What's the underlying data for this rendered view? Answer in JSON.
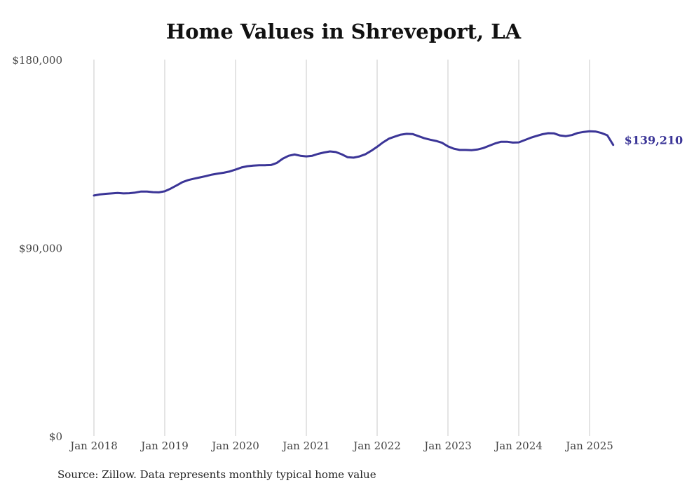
{
  "chart_data": {
    "type": "line",
    "title": "Home Values in Shreveport, LA",
    "xlabel": "",
    "ylabel": "",
    "ylim": [
      0,
      180000
    ],
    "yticks": [
      0,
      90000,
      180000
    ],
    "ytick_labels": [
      "$0",
      "$90,000",
      "$180,000"
    ],
    "xticks": [
      "2018-01",
      "2019-01",
      "2020-01",
      "2021-01",
      "2022-01",
      "2023-01",
      "2024-01",
      "2025-01"
    ],
    "xtick_labels": [
      "Jan 2018",
      "Jan 2019",
      "Jan 2020",
      "Jan 2021",
      "Jan 2022",
      "Jan 2023",
      "Jan 2024",
      "Jan 2025"
    ],
    "x_range": [
      "2018-01",
      "2025-05"
    ],
    "grid": "vertical",
    "legend": "none",
    "series_color": "#3b3597",
    "end_label": "$139,210",
    "series": [
      {
        "x": [
          "2018-01",
          "2018-02",
          "2018-03",
          "2018-04",
          "2018-05",
          "2018-06",
          "2018-07",
          "2018-08",
          "2018-09",
          "2018-10",
          "2018-11",
          "2018-12",
          "2019-01",
          "2019-02",
          "2019-03",
          "2019-04",
          "2019-05",
          "2019-06",
          "2019-07",
          "2019-08",
          "2019-09",
          "2019-10",
          "2019-11",
          "2019-12",
          "2020-01",
          "2020-02",
          "2020-03",
          "2020-04",
          "2020-05",
          "2020-06",
          "2020-07",
          "2020-08",
          "2020-09",
          "2020-10",
          "2020-11",
          "2020-12",
          "2021-01",
          "2021-02",
          "2021-03",
          "2021-04",
          "2021-05",
          "2021-06",
          "2021-07",
          "2021-08",
          "2021-09",
          "2021-10",
          "2021-11",
          "2021-12",
          "2022-01",
          "2022-02",
          "2022-03",
          "2022-04",
          "2022-05",
          "2022-06",
          "2022-07",
          "2022-08",
          "2022-09",
          "2022-10",
          "2022-11",
          "2022-12",
          "2023-01",
          "2023-02",
          "2023-03",
          "2023-04",
          "2023-05",
          "2023-06",
          "2023-07",
          "2023-08",
          "2023-09",
          "2023-10",
          "2023-11",
          "2023-12",
          "2024-01",
          "2024-02",
          "2024-03",
          "2024-04",
          "2024-05",
          "2024-06",
          "2024-07",
          "2024-08",
          "2024-09",
          "2024-10",
          "2024-11",
          "2024-12",
          "2025-01",
          "2025-02",
          "2025-03",
          "2025-04",
          "2025-05"
        ],
        "values": [
          115000,
          115500,
          115800,
          116000,
          116200,
          116000,
          116100,
          116400,
          116900,
          116900,
          116600,
          116500,
          117000,
          118300,
          119800,
          121400,
          122400,
          123100,
          123700,
          124300,
          125000,
          125500,
          125900,
          126500,
          127400,
          128400,
          129000,
          129300,
          129500,
          129500,
          129600,
          130600,
          132600,
          134000,
          134600,
          134000,
          133700,
          134000,
          134900,
          135600,
          136100,
          135800,
          134700,
          133300,
          133100,
          133700,
          134700,
          136400,
          138300,
          140400,
          142200,
          143200,
          144100,
          144500,
          144400,
          143400,
          142400,
          141700,
          141100,
          140200,
          138500,
          137400,
          136800,
          136800,
          136700,
          137000,
          137700,
          138800,
          139900,
          140700,
          140700,
          140300,
          140400,
          141500,
          142600,
          143500,
          144300,
          144800,
          144700,
          143700,
          143400,
          143900,
          144900,
          145400,
          145700,
          145600,
          144900,
          143800,
          139210
        ]
      }
    ]
  },
  "source_note": "Source: Zillow. Data represents monthly typical home value"
}
